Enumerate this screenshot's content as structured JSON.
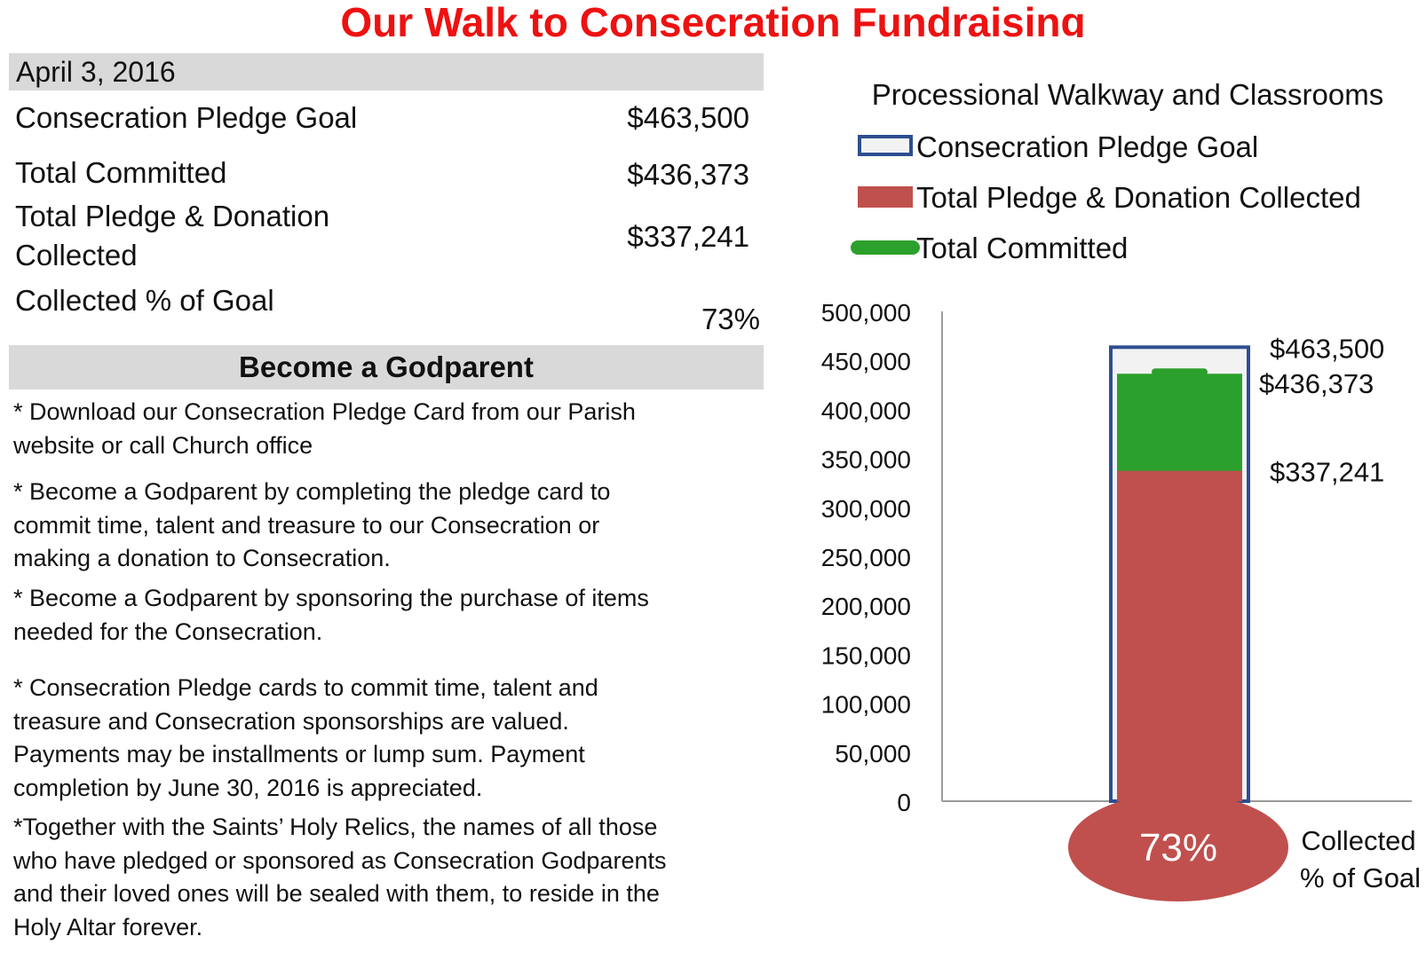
{
  "title": "Our Walk to Consecration Fundraising",
  "date": "April 3, 2016",
  "summary": [
    {
      "label_lines": [
        "Consecration Pledge Goal"
      ],
      "value": "$463,500"
    },
    {
      "label_lines": [
        "Total Committed"
      ],
      "value": "$436,373"
    },
    {
      "label_lines": [
        "Total Pledge & Donation",
        "Collected"
      ],
      "value": "$337,241"
    },
    {
      "label_lines": [
        "Collected % of Goal"
      ],
      "value": "73%"
    }
  ],
  "godparent": {
    "heading": "Become a Godparent",
    "paragraphs": [
      [
        "* Download our Consecration Pledge Card from our Parish",
        "website or call Church office"
      ],
      [
        "* Become a Godparent by completing the pledge card to",
        "commit time, talent and treasure to our Consecration or",
        "making a donation to Consecration."
      ],
      [
        "* Become a Godparent by sponsoring the purchase of items",
        "needed for the Consecration."
      ],
      [
        "* Consecration Pledge cards to commit time, talent and",
        "treasure and Consecration sponsorships are valued.",
        "Payments may be installments or lump sum. Payment",
        "completion by June 30, 2016 is appreciated."
      ],
      [
        "*Together with the Saints’ Holy Relics, the names of all those",
        "who have pledged or sponsored as Consecration Godparents",
        "and their loved ones will be sealed with them, to reside in the",
        "Holy Altar forever."
      ]
    ]
  },
  "chart_data": {
    "type": "bar",
    "title": "Processional Walkway and Classrooms",
    "ylim": [
      0,
      500000
    ],
    "yticks": [
      0,
      50000,
      100000,
      150000,
      200000,
      250000,
      300000,
      350000,
      400000,
      450000,
      500000
    ],
    "ytick_labels": [
      "0",
      "50,000",
      "100,000",
      "150,000",
      "200,000",
      "250,000",
      "300,000",
      "350,000",
      "400,000",
      "450,000",
      "500,000"
    ],
    "legend_position": "top",
    "series": [
      {
        "name": "Consecration Pledge Goal",
        "value": 463500,
        "label": "$463,500",
        "color": "#f2f2f2",
        "border": "#2e4f8f"
      },
      {
        "name": "Total Pledge & Donation Collected",
        "value": 337241,
        "label": "$337,241",
        "color": "#c0504d"
      },
      {
        "name": "Total Committed",
        "value": 436373,
        "label": "$436,373",
        "color": "#2ca02c"
      }
    ],
    "bulb": {
      "value_label": "73%",
      "caption_lines": [
        "Collected",
        "% of Goal"
      ],
      "color": "#c0504d"
    }
  }
}
